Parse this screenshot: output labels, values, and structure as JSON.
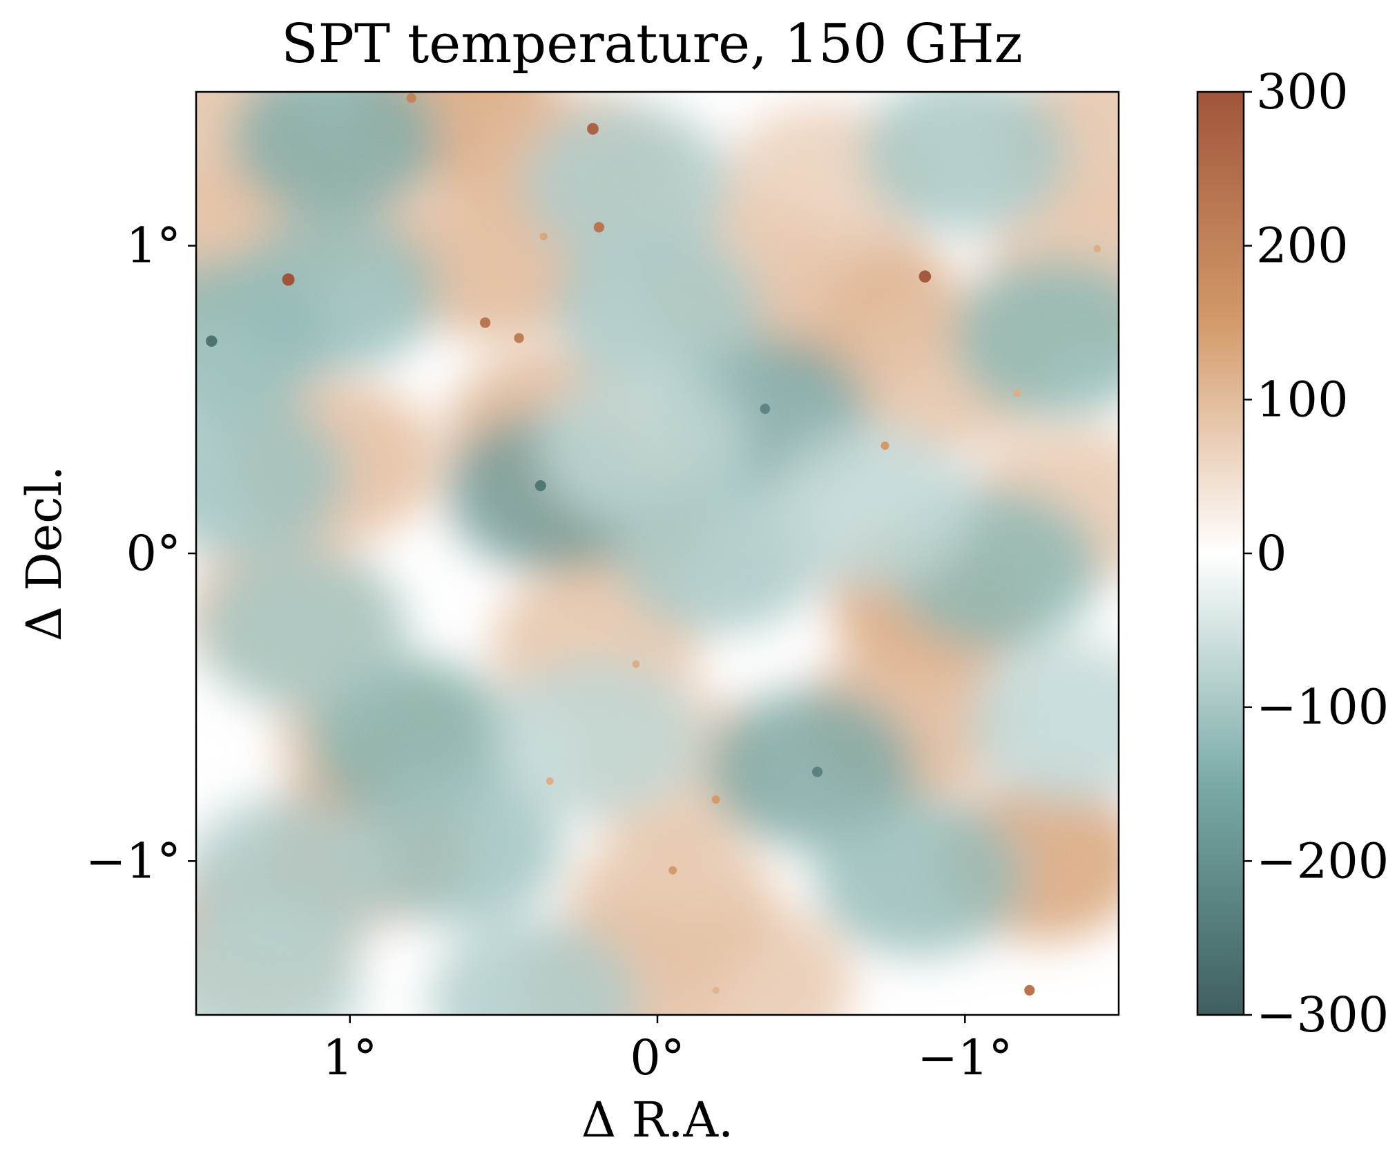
{
  "chart_data": {
    "type": "heatmap",
    "title": "SPT temperature, 150 GHz",
    "xlabel": "Δ R.A.",
    "ylabel": "Δ Decl.",
    "xlim": [
      1.5,
      -1.5
    ],
    "ylim": [
      -1.5,
      1.5
    ],
    "x_ticks": [
      {
        "value": 1,
        "label": "1°"
      },
      {
        "value": 0,
        "label": "0°"
      },
      {
        "value": -1,
        "label": "−1°"
      }
    ],
    "y_ticks": [
      {
        "value": 1,
        "label": "1°"
      },
      {
        "value": 0,
        "label": "0°"
      },
      {
        "value": -1,
        "label": "−1°"
      }
    ],
    "colorbar": {
      "range": [
        -300,
        300
      ],
      "ticks": [
        {
          "value": 300,
          "label": "300"
        },
        {
          "value": 200,
          "label": "200"
        },
        {
          "value": 100,
          "label": "100"
        },
        {
          "value": 0,
          "label": "0"
        },
        {
          "value": -100,
          "label": "−100"
        },
        {
          "value": -200,
          "label": "−200"
        },
        {
          "value": -300,
          "label": "−300"
        }
      ],
      "colors": {
        "min": "#3e5f5e",
        "mid_low": "#79aaa6",
        "center": "#ffffff",
        "mid_high": "#d39a6a",
        "max": "#a0553a"
      }
    },
    "warm_blobs": [
      {
        "x": -0.65,
        "y": 0.8,
        "value": 140
      },
      {
        "x": 0.65,
        "y": 1.45,
        "value": 150
      },
      {
        "x": 0.52,
        "y": 0.95,
        "value": 120
      },
      {
        "x": 0.25,
        "y": 1.25,
        "value": 110
      },
      {
        "x": 0.35,
        "y": 0.4,
        "value": 120
      },
      {
        "x": 0.15,
        "y": 0.15,
        "value": 110
      },
      {
        "x": 1.05,
        "y": 0.3,
        "value": 110
      },
      {
        "x": 1.2,
        "y": -0.2,
        "value": 110
      },
      {
        "x": 0.9,
        "y": -0.6,
        "value": 100
      },
      {
        "x": 0.95,
        "y": -0.95,
        "value": 150
      },
      {
        "x": 1.3,
        "y": -1.25,
        "value": 140
      },
      {
        "x": 0.2,
        "y": -0.3,
        "value": 100
      },
      {
        "x": -0.05,
        "y": -0.7,
        "value": 90
      },
      {
        "x": -0.9,
        "y": -0.15,
        "value": 150
      },
      {
        "x": -0.8,
        "y": -0.55,
        "value": 120
      },
      {
        "x": -1.25,
        "y": -1.0,
        "value": 150
      },
      {
        "x": -1.4,
        "y": 0.9,
        "value": 100
      },
      {
        "x": -0.55,
        "y": 1.2,
        "value": 80
      },
      {
        "x": 1.4,
        "y": 1.0,
        "value": 110
      },
      {
        "x": 0.1,
        "y": -1.4,
        "value": 110
      },
      {
        "x": -0.3,
        "y": -1.4,
        "value": 90
      },
      {
        "x": -0.05,
        "y": -1.15,
        "value": 100
      },
      {
        "x": 1.1,
        "y": 1.15,
        "value": 100
      },
      {
        "x": -1.35,
        "y": 0.15,
        "value": 90
      },
      {
        "x": -0.25,
        "y": 0.9,
        "value": 90
      },
      {
        "x": -0.95,
        "y": 0.6,
        "value": 100
      },
      {
        "x": 1.45,
        "y": 1.4,
        "value": 100
      },
      {
        "x": -1.45,
        "y": 1.35,
        "value": 100
      }
    ],
    "cool_blobs": [
      {
        "x": 1.05,
        "y": 1.35,
        "value": -160
      },
      {
        "x": 0.35,
        "y": 0.2,
        "value": -200
      },
      {
        "x": -0.35,
        "y": 0.45,
        "value": -180
      },
      {
        "x": -0.5,
        "y": -0.7,
        "value": -170
      },
      {
        "x": 0.8,
        "y": -0.6,
        "value": -150
      },
      {
        "x": 1.15,
        "y": -0.25,
        "value": -110
      },
      {
        "x": 1.4,
        "y": 0.7,
        "value": -140
      },
      {
        "x": 1.05,
        "y": 0.85,
        "value": -130
      },
      {
        "x": -1.1,
        "y": -0.05,
        "value": -140
      },
      {
        "x": -1.3,
        "y": 0.7,
        "value": -140
      },
      {
        "x": -1.0,
        "y": 1.3,
        "value": -110
      },
      {
        "x": 0.65,
        "y": -0.95,
        "value": -120
      },
      {
        "x": -0.85,
        "y": -1.05,
        "value": -130
      },
      {
        "x": 0.0,
        "y": 0.8,
        "value": -110
      },
      {
        "x": 0.05,
        "y": 0.35,
        "value": -80
      },
      {
        "x": -0.2,
        "y": 0.0,
        "value": -110
      },
      {
        "x": 0.2,
        "y": -0.6,
        "value": -80
      },
      {
        "x": 1.2,
        "y": -1.05,
        "value": -100
      },
      {
        "x": 0.1,
        "y": 1.2,
        "value": -100
      },
      {
        "x": -0.7,
        "y": 0.15,
        "value": -80
      },
      {
        "x": 0.4,
        "y": -1.45,
        "value": -100
      },
      {
        "x": -1.35,
        "y": -0.55,
        "value": -80
      },
      {
        "x": 1.35,
        "y": 0.25,
        "value": -120
      },
      {
        "x": 1.3,
        "y": -1.4,
        "value": -90
      }
    ],
    "point_sources": [
      {
        "x": 1.2,
        "y": 0.89,
        "value": 300
      },
      {
        "x": -0.87,
        "y": 0.9,
        "value": 290
      },
      {
        "x": 0.21,
        "y": 1.38,
        "value": 270
      },
      {
        "x": 0.19,
        "y": 1.06,
        "value": 230
      },
      {
        "x": 0.56,
        "y": 0.75,
        "value": 230
      },
      {
        "x": 0.45,
        "y": 0.7,
        "value": 210
      },
      {
        "x": 0.8,
        "y": 1.48,
        "value": 200
      },
      {
        "x": -1.21,
        "y": -1.42,
        "value": 230
      },
      {
        "x": -0.74,
        "y": 0.35,
        "value": 150
      },
      {
        "x": -0.19,
        "y": -0.8,
        "value": 150
      },
      {
        "x": -0.05,
        "y": -1.03,
        "value": 150
      },
      {
        "x": 0.37,
        "y": 1.03,
        "value": 130
      },
      {
        "x": -1.43,
        "y": 0.99,
        "value": 120
      },
      {
        "x": 0.35,
        "y": -0.74,
        "value": 120
      },
      {
        "x": 0.07,
        "y": -0.36,
        "value": 120
      },
      {
        "x": -0.19,
        "y": -1.42,
        "value": 110
      },
      {
        "x": -1.17,
        "y": 0.52,
        "value": 120
      },
      {
        "x": 1.45,
        "y": 0.69,
        "value": -260
      },
      {
        "x": 0.38,
        "y": 0.22,
        "value": -250
      },
      {
        "x": -0.52,
        "y": -0.71,
        "value": -230
      },
      {
        "x": -0.35,
        "y": 0.47,
        "value": -220
      }
    ]
  }
}
